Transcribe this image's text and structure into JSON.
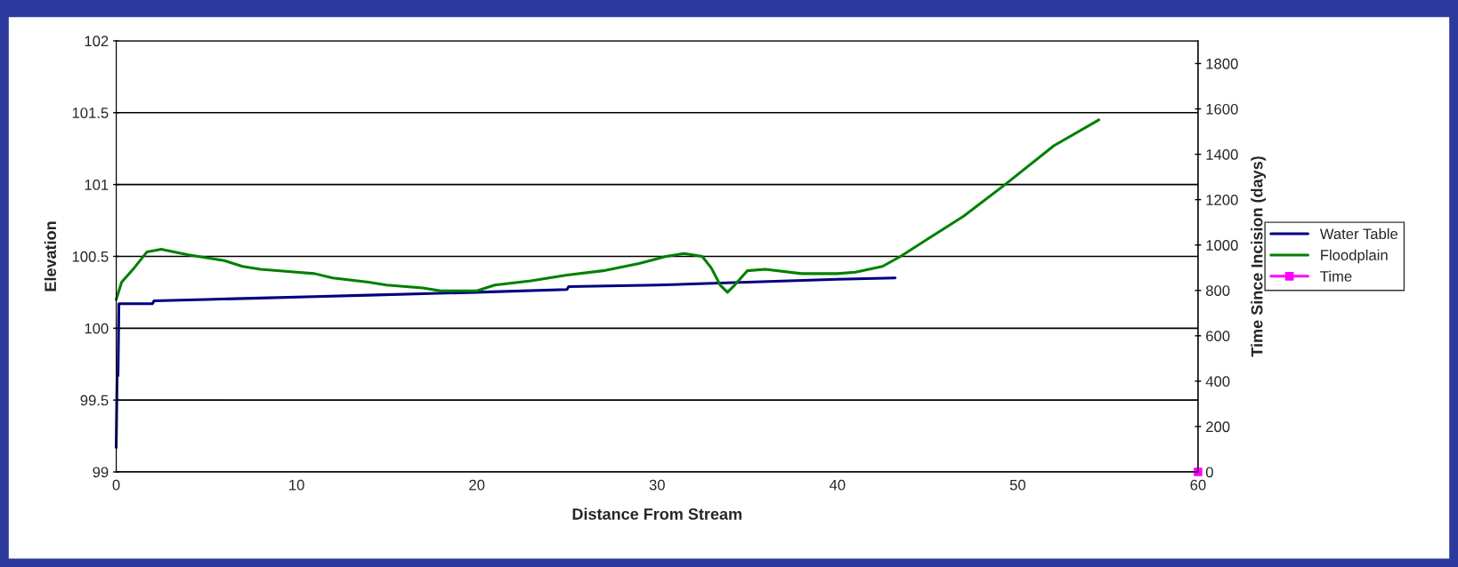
{
  "chart_data": {
    "type": "line",
    "xlabel": "Distance From Stream",
    "ylabel": "Elevation",
    "y2label": "Time Since Incision (days)",
    "xlim": [
      0,
      60
    ],
    "xticks": [
      0,
      10,
      20,
      30,
      40,
      50,
      60
    ],
    "ylim": [
      99,
      102
    ],
    "yticks": [
      99,
      99.5,
      100,
      100.5,
      101,
      101.5,
      102
    ],
    "y2lim": [
      0,
      1900
    ],
    "y2ticks": [
      0,
      200,
      400,
      600,
      800,
      1000,
      1200,
      1400,
      1600,
      1800
    ],
    "grid": "y",
    "legend": "right",
    "series": [
      {
        "name": "Water Table",
        "color": "#000080",
        "marker": "none",
        "x": [
          0,
          0.05,
          0.1,
          0.15,
          2,
          2.1,
          5,
          8,
          11,
          14,
          17,
          20,
          25,
          25.1,
          30,
          35,
          40,
          43.2
        ],
        "values": [
          99.17,
          99.67,
          99.67,
          100.17,
          100.17,
          100.19,
          100.2,
          100.21,
          100.22,
          100.23,
          100.24,
          100.25,
          100.27,
          100.29,
          100.3,
          100.32,
          100.34,
          100.35
        ]
      },
      {
        "name": "Floodplain",
        "color": "#008000",
        "marker": "none",
        "x": [
          0,
          0.3,
          1,
          1.7,
          2.5,
          4,
          6,
          7,
          8,
          10,
          11,
          12,
          14,
          15,
          17,
          18,
          20,
          21,
          23,
          25,
          27,
          29,
          30.5,
          31.5,
          32.5,
          33,
          33.5,
          33.9,
          34.3,
          35,
          36,
          38,
          40,
          41,
          42.5,
          43.5,
          45,
          47,
          49.3,
          52,
          54.5
        ],
        "values": [
          100.2,
          100.32,
          100.42,
          100.53,
          100.55,
          100.51,
          100.47,
          100.43,
          100.41,
          100.39,
          100.38,
          100.35,
          100.32,
          100.3,
          100.28,
          100.26,
          100.26,
          100.3,
          100.33,
          100.37,
          100.4,
          100.45,
          100.5,
          100.52,
          100.5,
          100.42,
          100.3,
          100.25,
          100.3,
          100.4,
          100.41,
          100.38,
          100.38,
          100.39,
          100.43,
          100.5,
          100.62,
          100.78,
          101.0,
          101.27,
          101.45
        ]
      },
      {
        "name": "Time",
        "color": "#ff00ff",
        "marker": "square",
        "axis": "y2",
        "x": [
          60
        ],
        "values": [
          0
        ]
      }
    ]
  }
}
